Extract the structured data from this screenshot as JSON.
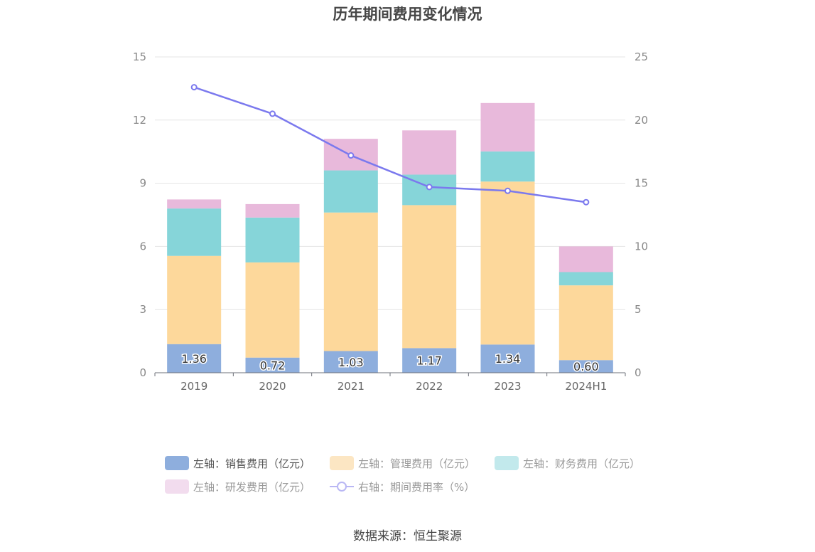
{
  "title": "历年期间费用变化情况",
  "source": "数据来源：恒生聚源",
  "legend": [
    {
      "label": "左轴：销售费用（亿元）",
      "color": "#8eaedd"
    },
    {
      "label": "左轴：管理费用（亿元）",
      "color": "#fce6c3"
    },
    {
      "label": "左轴：财务费用（亿元）",
      "color": "#c2e9ec"
    },
    {
      "label": "左轴：研发费用（亿元）",
      "color": "#f2dcee"
    },
    {
      "label": "右轴：期间费用率（%）",
      "color": "#b9b7f4"
    }
  ],
  "chart_data": {
    "type": "bar",
    "title": "历年期间费用变化情况",
    "categories": [
      "2019",
      "2020",
      "2021",
      "2022",
      "2023",
      "2024H1"
    ],
    "stacked": true,
    "left_axis": {
      "ylim": [
        0,
        15
      ],
      "ticks": [
        "0",
        "3",
        "6",
        "9",
        "12",
        "15"
      ]
    },
    "right_axis": {
      "ylim": [
        0,
        25
      ],
      "ticks": [
        "0",
        "5",
        "10",
        "15",
        "20",
        "25"
      ]
    },
    "series": [
      {
        "name": "左轴：销售费用（亿元）",
        "axis": "left",
        "color": "#8eaedd",
        "values": [
          1.36,
          0.72,
          1.03,
          1.17,
          1.34,
          0.6
        ],
        "labels": [
          "1.36",
          "0.72",
          "1.03",
          "1.17",
          "1.34",
          "0.60"
        ]
      },
      {
        "name": "左轴：管理费用（亿元）",
        "axis": "left",
        "color": "#fdd89b",
        "values": [
          4.19,
          4.52,
          6.58,
          6.79,
          7.74,
          3.55
        ]
      },
      {
        "name": "左轴：财务费用（亿元）",
        "axis": "left",
        "color": "#86d5d9",
        "values": [
          2.25,
          2.13,
          2.0,
          1.45,
          1.43,
          0.63
        ]
      },
      {
        "name": "左轴：研发费用（亿元）",
        "axis": "left",
        "color": "#e8b9db",
        "values": [
          0.43,
          0.64,
          1.5,
          2.1,
          2.3,
          1.22
        ]
      },
      {
        "name": "右轴：期间费用率（%）",
        "type": "line",
        "axis": "right",
        "color": "#7b79ee",
        "values": [
          22.6,
          20.5,
          17.2,
          14.7,
          14.4,
          13.5
        ]
      }
    ],
    "grid": true,
    "legend_position": "bottom"
  }
}
